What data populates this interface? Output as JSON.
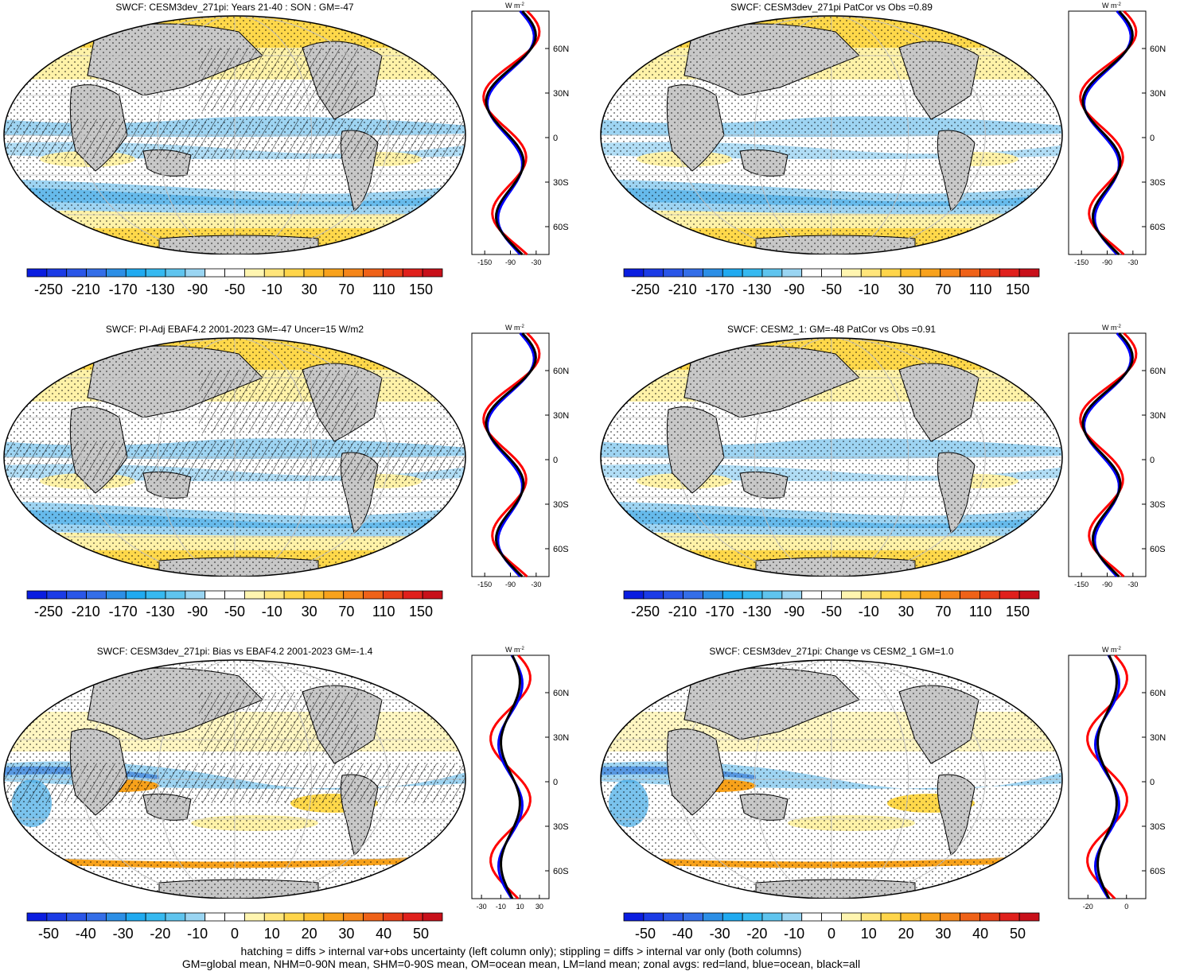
{
  "colors": {
    "land": "#c8c8c8",
    "white": "#ffffff",
    "lightblue": "#9ed4f2",
    "blue": "#41a9e6",
    "darkblue": "#1e64d2",
    "lightyellow": "#fff2a8",
    "yellow": "#ffd84a",
    "orange": "#f7a11a",
    "red": "#e02020",
    "zonal_land": "#ff0000",
    "zonal_ocean": "#0000ff",
    "zonal_all": "#000000"
  },
  "colorbar_colors": [
    "#0a1de0",
    "#1b3be6",
    "#2a56e8",
    "#346ee8",
    "#2c8fe6",
    "#20aaf0",
    "#36b9f0",
    "#5fc4ee",
    "#9ad5f2",
    "#ffffff",
    "#ffffff",
    "#fff5b0",
    "#ffe57a",
    "#ffd54a",
    "#fcbf2e",
    "#f8a21c",
    "#f5861a",
    "#ef6218",
    "#e84018",
    "#e0201c",
    "#c8101a"
  ],
  "panels": [
    {
      "id": "p1",
      "title": "SWCF: CESM3dev_271pi: Years 21-40 : SON : GM=-47",
      "colorbar": [
        "-250",
        "-210",
        "-170",
        "-130",
        "-90",
        "-50",
        "-10",
        "30",
        "70",
        "110",
        "150"
      ],
      "zonal_xticks": [
        "-150",
        "-90",
        "-30"
      ],
      "zonal_yticks": [
        "60N",
        "30N",
        "0",
        "30S",
        "60S"
      ],
      "zonal_unit": "W m",
      "zonal_unit_sup": "-2",
      "hatched": true,
      "kind": "mean"
    },
    {
      "id": "p2",
      "title": "SWCF: CESM3dev_271pi PatCor vs Obs =0.89",
      "colorbar": [
        "-250",
        "-210",
        "-170",
        "-130",
        "-90",
        "-50",
        "-10",
        "30",
        "70",
        "110",
        "150"
      ],
      "zonal_xticks": [
        "-150",
        "-90",
        "-30"
      ],
      "zonal_yticks": [
        "60N",
        "30N",
        "0",
        "30S",
        "60S"
      ],
      "zonal_unit": "W m",
      "zonal_unit_sup": "-2",
      "hatched": false,
      "kind": "mean"
    },
    {
      "id": "p3",
      "title": "SWCF: PI-Adj EBAF4.2 2001-2023 GM=-47 Uncer=15 W/m2",
      "colorbar": [
        "-250",
        "-210",
        "-170",
        "-130",
        "-90",
        "-50",
        "-10",
        "30",
        "70",
        "110",
        "150"
      ],
      "zonal_xticks": [
        "-150",
        "-90",
        "-30"
      ],
      "zonal_yticks": [
        "60N",
        "30N",
        "0",
        "30S",
        "60S"
      ],
      "zonal_unit": "W m",
      "zonal_unit_sup": "-2",
      "hatched": true,
      "kind": "mean"
    },
    {
      "id": "p4",
      "title": "SWCF: CESM2_1: GM=-48 PatCor vs Obs =0.91",
      "colorbar": [
        "-250",
        "-210",
        "-170",
        "-130",
        "-90",
        "-50",
        "-10",
        "30",
        "70",
        "110",
        "150"
      ],
      "zonal_xticks": [
        "-150",
        "-90",
        "-30"
      ],
      "zonal_yticks": [
        "60N",
        "30N",
        "0",
        "30S",
        "60S"
      ],
      "zonal_unit": "W m",
      "zonal_unit_sup": "-2",
      "hatched": false,
      "kind": "mean"
    },
    {
      "id": "p5",
      "title": "SWCF: CESM3dev_271pi: Bias vs EBAF4.2 2001-2023  GM=-1.4",
      "colorbar": [
        "-50",
        "-40",
        "-30",
        "-20",
        "-10",
        "0",
        "10",
        "20",
        "30",
        "40",
        "50"
      ],
      "zonal_xticks": [
        "-30",
        "-10",
        "10",
        "30"
      ],
      "zonal_yticks": [
        "60N",
        "30N",
        "0",
        "30S",
        "60S"
      ],
      "zonal_unit": "W m",
      "zonal_unit_sup": "-2",
      "hatched": true,
      "kind": "diff"
    },
    {
      "id": "p6",
      "title": "SWCF: CESM3dev_271pi: Change vs CESM2_1 GM=1.0",
      "colorbar": [
        "-50",
        "-40",
        "-30",
        "-20",
        "-10",
        "0",
        "10",
        "20",
        "30",
        "40",
        "50"
      ],
      "zonal_xticks": [
        "-20",
        "0"
      ],
      "zonal_yticks": [
        "60N",
        "30N",
        "0",
        "30S",
        "60S"
      ],
      "zonal_unit": "W m",
      "zonal_unit_sup": "-2",
      "hatched": false,
      "kind": "diff"
    }
  ],
  "footer": {
    "line1": "hatching = diffs > internal var+obs uncertainty (left column only); stippling = diffs > internal var only (both columns)",
    "line2": "GM=global mean, NHM=0-90N mean, SHM=0-90S mean, OM=ocean mean, LM=land mean; zonal avgs: red=land, blue=ocean, black=all"
  }
}
